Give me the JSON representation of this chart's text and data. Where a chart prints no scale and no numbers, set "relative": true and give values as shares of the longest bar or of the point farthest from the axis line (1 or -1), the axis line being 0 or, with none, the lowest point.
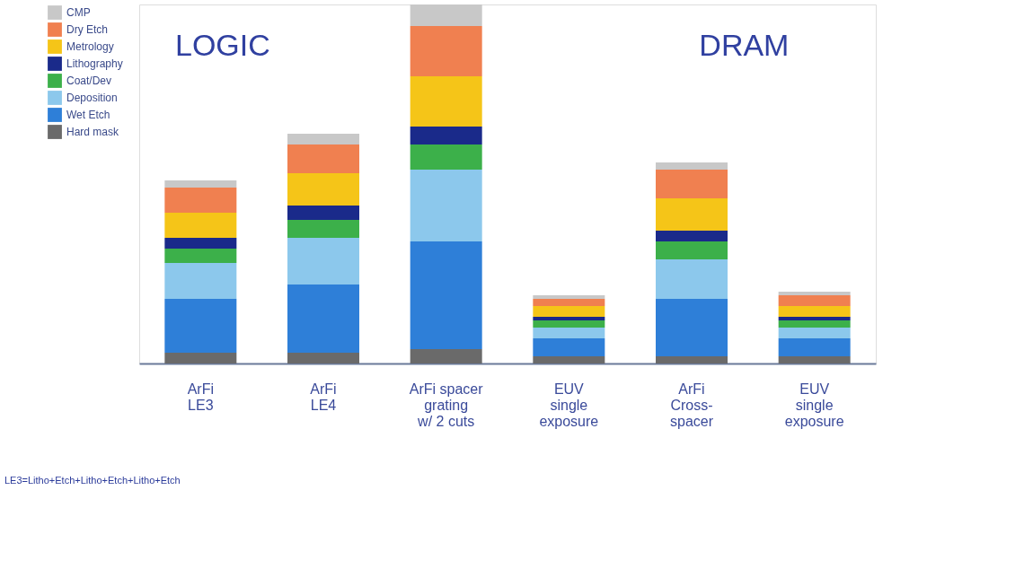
{
  "chart_data": {
    "type": "bar",
    "stacked": true,
    "relative": true,
    "legend": "left",
    "grid": false,
    "categories": [
      "ArFi\nLE3",
      "ArFi\nLE4",
      "ArFi spacer\ngrating\nw/ 2 cuts",
      "EUV\nsingle\nexposure",
      "ArFi\nCross-\nspacer",
      "EUV\nsingle\nexposure"
    ],
    "series": [
      {
        "name": "Hard mask",
        "color": "#6a6a6a",
        "values": [
          0.03,
          0.03,
          0.04,
          0.02,
          0.02,
          0.02
        ]
      },
      {
        "name": "Wet Etch",
        "color": "#2e7fd8",
        "values": [
          0.15,
          0.19,
          0.3,
          0.05,
          0.16,
          0.05
        ]
      },
      {
        "name": "Deposition",
        "color": "#8cc8ec",
        "values": [
          0.1,
          0.13,
          0.2,
          0.03,
          0.11,
          0.03
        ]
      },
      {
        "name": "Coat/Dev",
        "color": "#3cb04a",
        "values": [
          0.04,
          0.05,
          0.07,
          0.02,
          0.05,
          0.02
        ]
      },
      {
        "name": "Lithography",
        "color": "#1a2a8a",
        "values": [
          0.03,
          0.04,
          0.05,
          0.01,
          0.03,
          0.01
        ]
      },
      {
        "name": "Metrology",
        "color": "#f5c518",
        "values": [
          0.07,
          0.09,
          0.14,
          0.03,
          0.09,
          0.03
        ]
      },
      {
        "name": "Dry Etch",
        "color": "#f08050",
        "values": [
          0.07,
          0.08,
          0.14,
          0.02,
          0.08,
          0.03
        ]
      },
      {
        "name": "CMP",
        "color": "#c8c8c8",
        "values": [
          0.02,
          0.03,
          0.06,
          0.01,
          0.02,
          0.01
        ]
      }
    ],
    "annotations": [
      "LOGIC",
      "DRAM",
      "LE3=Litho+Etch+Litho+Etch+Litho+Etch"
    ]
  }
}
